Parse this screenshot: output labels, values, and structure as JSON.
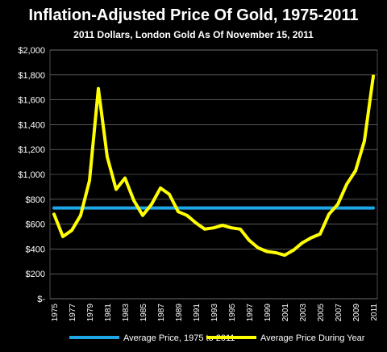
{
  "chart_data": {
    "type": "line",
    "title": "Inflation-Adjusted Price Of Gold, 1975-2011",
    "subtitle": "2011 Dollars, London Gold As Of November 15, 2011",
    "xlabel": "",
    "ylabel": "",
    "ylim": [
      0,
      2000
    ],
    "y_ticks": [
      "$-",
      "$200",
      "$400",
      "$600",
      "$800",
      "$1,000",
      "$1,200",
      "$1,400",
      "$1,600",
      "$1,800",
      "$2,000"
    ],
    "x_tick_labels": [
      "1975",
      "1977",
      "1979",
      "1981",
      "1983",
      "1985",
      "1987",
      "1989",
      "1991",
      "1993",
      "1995",
      "1997",
      "1999",
      "2001",
      "2003",
      "2005",
      "2007",
      "2009",
      "2011"
    ],
    "grid": true,
    "legend_position": "bottom",
    "x": [
      1975,
      1976,
      1977,
      1978,
      1979,
      1980,
      1981,
      1982,
      1983,
      1984,
      1985,
      1986,
      1987,
      1988,
      1989,
      1990,
      1991,
      1992,
      1993,
      1994,
      1995,
      1996,
      1997,
      1998,
      1999,
      2000,
      2001,
      2002,
      2003,
      2004,
      2005,
      2006,
      2007,
      2008,
      2009,
      2010,
      2011
    ],
    "series": [
      {
        "name": "Average Price, 1975 to 2011",
        "color": "#1ea7e6",
        "values": [
          730,
          730,
          730,
          730,
          730,
          730,
          730,
          730,
          730,
          730,
          730,
          730,
          730,
          730,
          730,
          730,
          730,
          730,
          730,
          730,
          730,
          730,
          730,
          730,
          730,
          730,
          730,
          730,
          730,
          730,
          730,
          730,
          730,
          730,
          730,
          730,
          730
        ]
      },
      {
        "name": "Average Price During Year",
        "color": "#ffff00",
        "values": [
          680,
          500,
          550,
          670,
          950,
          1690,
          1140,
          880,
          970,
          790,
          670,
          760,
          890,
          840,
          700,
          670,
          610,
          560,
          570,
          590,
          570,
          560,
          470,
          410,
          380,
          370,
          350,
          390,
          450,
          490,
          520,
          680,
          760,
          920,
          1030,
          1270,
          1790
        ]
      }
    ]
  }
}
